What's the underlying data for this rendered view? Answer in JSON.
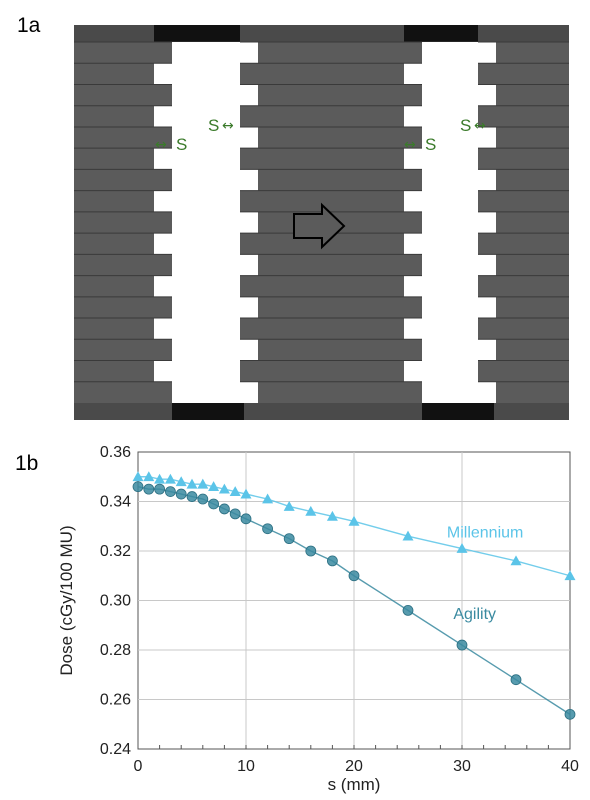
{
  "figure": {
    "panel_a_label": "1a",
    "panel_b_label": "1b"
  },
  "diagram": {
    "gap_label": "S",
    "leaf_pairs": 17,
    "colors": {
      "leaf": "#5b5b5b",
      "leaf_edge": "#3a3a3a",
      "jaw": "#111111",
      "label": "#3a7a2a",
      "arrow_fill": "#5b5b5b",
      "arrow_stroke": "#000000"
    }
  },
  "chart_data": {
    "type": "scatter",
    "xlabel": "s (mm)",
    "ylabel": "Dose (cGy/100 MU)",
    "xlim": [
      0,
      40
    ],
    "ylim": [
      0.24,
      0.36
    ],
    "xticks": [
      "0",
      "10",
      "20",
      "30",
      "40"
    ],
    "yticks": [
      "0.24",
      "0.26",
      "0.28",
      "0.30",
      "0.32",
      "0.34",
      "0.36"
    ],
    "grid": true,
    "series": [
      {
        "name": "Millennium",
        "marker": "triangle",
        "color": "#5bc4e8",
        "x": [
          0,
          1,
          2,
          3,
          4,
          5,
          6,
          7,
          8,
          9,
          10,
          12,
          14,
          16,
          18,
          20,
          25,
          30,
          35,
          40
        ],
        "y": [
          0.35,
          0.35,
          0.349,
          0.349,
          0.348,
          0.347,
          0.347,
          0.346,
          0.345,
          0.344,
          0.343,
          0.341,
          0.338,
          0.336,
          0.334,
          0.332,
          0.326,
          0.321,
          0.316,
          0.31
        ]
      },
      {
        "name": "Agility",
        "marker": "circle",
        "color": "#3a8aa0",
        "x": [
          0,
          1,
          2,
          3,
          4,
          5,
          6,
          7,
          8,
          9,
          10,
          12,
          14,
          16,
          18,
          20,
          25,
          30,
          35,
          40
        ],
        "y": [
          0.346,
          0.345,
          0.345,
          0.344,
          0.343,
          0.342,
          0.341,
          0.339,
          0.337,
          0.335,
          0.333,
          0.329,
          0.325,
          0.32,
          0.316,
          0.31,
          0.296,
          0.282,
          0.268,
          0.254
        ]
      }
    ]
  }
}
